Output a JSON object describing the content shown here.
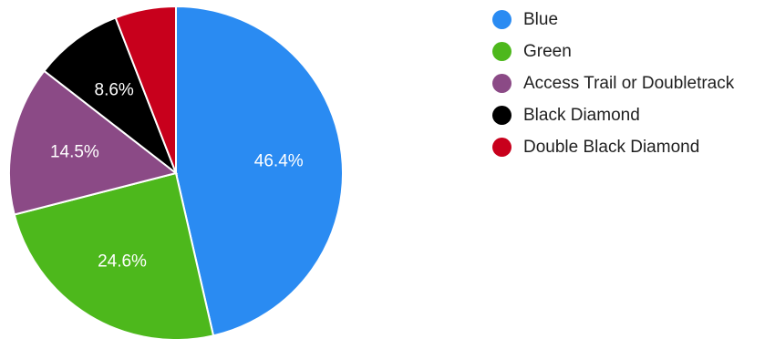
{
  "chart_data": {
    "type": "pie",
    "title": "",
    "start": "12 o'clock",
    "direction": "clockwise",
    "slices": [
      {
        "name": "Blue",
        "value": 46.4,
        "label": "46.4%",
        "color": "#2a8bf2"
      },
      {
        "name": "Green",
        "value": 24.6,
        "label": "24.6%",
        "color": "#4db81c"
      },
      {
        "name": "Access Trail or Doubletrack",
        "value": 14.5,
        "label": "14.5%",
        "color": "#8b4a86"
      },
      {
        "name": "Black Diamond",
        "value": 8.6,
        "label": "8.6%",
        "color": "#000000"
      },
      {
        "name": "Double Black Diamond",
        "value": 5.9,
        "label": "",
        "color": "#c8001c"
      }
    ],
    "legend": {
      "position": "right",
      "items": [
        "Blue",
        "Green",
        "Access Trail or Doubletrack",
        "Black Diamond",
        "Double Black Diamond"
      ]
    }
  }
}
